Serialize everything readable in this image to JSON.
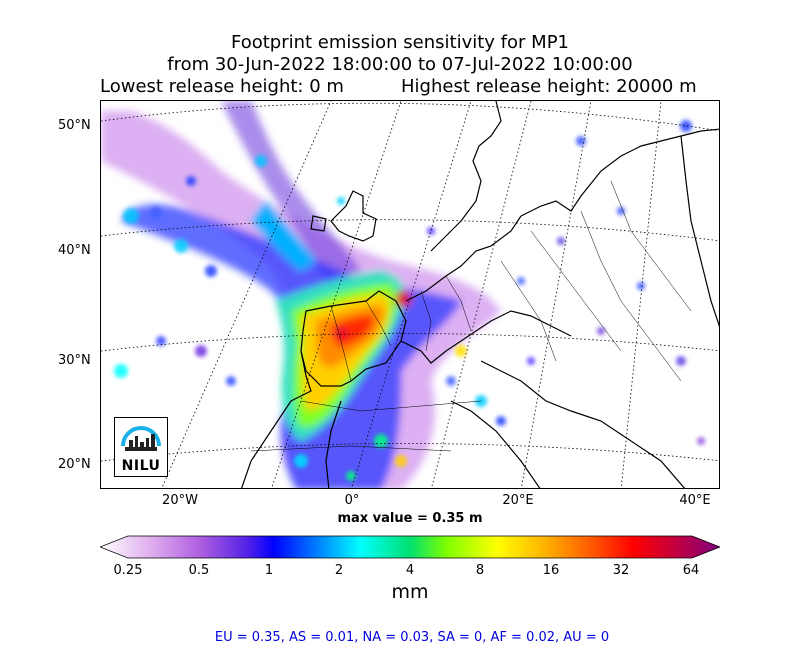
{
  "title": {
    "line1": "Footprint emission sensitivity for MP1",
    "line2": "from 30-Jun-2022 18:00:00 to 07-Jul-2022 10:00:00",
    "line3_left": "Lowest release height: 0 m",
    "line3_right": "Highest release height: 20000 m"
  },
  "map": {
    "lat_labels": [
      "50°N",
      "40°N",
      "30°N",
      "20°N"
    ],
    "lon_labels": [
      "20°W",
      "0°",
      "20°E",
      "40°E"
    ],
    "max_value_text": "max value = 0.35 m",
    "logo_text": "NILU"
  },
  "colorbar": {
    "ticks": [
      "0.25",
      "0.5",
      "1",
      "2",
      "4",
      "8",
      "16",
      "32",
      "64"
    ],
    "unit": "mm",
    "colors": [
      "#ffffff",
      "#d59be6",
      "#a040e0",
      "#0000ff",
      "#00a0ff",
      "#00ffff",
      "#00e080",
      "#80ff00",
      "#ffff00",
      "#ffb000",
      "#ff6000",
      "#ff0000",
      "#c00040",
      "#800080"
    ]
  },
  "footer": "EU = 0.35,  AS = 0.01,  NA = 0.03,  SA = 0,  AF = 0.02,  AU = 0"
}
